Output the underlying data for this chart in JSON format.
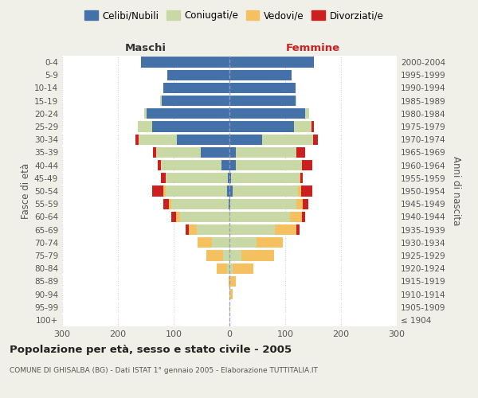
{
  "age_groups": [
    "100+",
    "95-99",
    "90-94",
    "85-89",
    "80-84",
    "75-79",
    "70-74",
    "65-69",
    "60-64",
    "55-59",
    "50-54",
    "45-49",
    "40-44",
    "35-39",
    "30-34",
    "25-29",
    "20-24",
    "15-19",
    "10-14",
    "5-9",
    "0-4"
  ],
  "birth_years": [
    "≤ 1904",
    "1905-1909",
    "1910-1914",
    "1915-1919",
    "1920-1924",
    "1925-1929",
    "1930-1934",
    "1935-1939",
    "1940-1944",
    "1945-1949",
    "1950-1954",
    "1955-1959",
    "1960-1964",
    "1965-1969",
    "1970-1974",
    "1975-1979",
    "1980-1984",
    "1985-1989",
    "1990-1994",
    "1995-1999",
    "2000-2004"
  ],
  "maschi": {
    "celibi": [
      0,
      0,
      0,
      0,
      0,
      0,
      0,
      0,
      0,
      2,
      5,
      3,
      15,
      52,
      95,
      138,
      148,
      122,
      118,
      112,
      158
    ],
    "coniugati": [
      0,
      0,
      0,
      0,
      5,
      12,
      32,
      58,
      88,
      102,
      110,
      112,
      108,
      80,
      68,
      26,
      5,
      2,
      0,
      0,
      0
    ],
    "vedovi": [
      0,
      0,
      0,
      2,
      18,
      30,
      25,
      15,
      8,
      5,
      3,
      0,
      0,
      0,
      0,
      0,
      0,
      0,
      0,
      0,
      0
    ],
    "divorziati": [
      0,
      0,
      0,
      0,
      0,
      0,
      0,
      5,
      8,
      10,
      20,
      8,
      5,
      5,
      5,
      0,
      0,
      0,
      0,
      0,
      0
    ]
  },
  "femmine": {
    "nubili": [
      0,
      0,
      0,
      0,
      0,
      0,
      0,
      0,
      0,
      2,
      5,
      3,
      12,
      12,
      58,
      115,
      135,
      118,
      118,
      112,
      152
    ],
    "coniugate": [
      0,
      0,
      0,
      0,
      5,
      22,
      48,
      82,
      108,
      118,
      118,
      122,
      118,
      108,
      92,
      32,
      8,
      2,
      0,
      0,
      0
    ],
    "vedove": [
      0,
      2,
      5,
      12,
      38,
      58,
      48,
      38,
      22,
      12,
      5,
      2,
      0,
      0,
      0,
      0,
      0,
      0,
      0,
      0,
      0
    ],
    "divorziate": [
      0,
      0,
      0,
      0,
      0,
      0,
      0,
      5,
      5,
      10,
      20,
      5,
      18,
      15,
      8,
      5,
      0,
      0,
      0,
      0,
      0
    ]
  },
  "colors": {
    "celibi": "#4472a8",
    "coniugati": "#c8d9a5",
    "vedovi": "#f5c060",
    "divorziati": "#cc2020"
  },
  "xlim": 300,
  "title": "Popolazione per età, sesso e stato civile - 2005",
  "subtitle": "COMUNE DI GHISALBA (BG) - Dati ISTAT 1° gennaio 2005 - Elaborazione TUTTITALIA.IT",
  "ylabel_left": "Fasce di età",
  "ylabel_right": "Anni di nascita",
  "label_maschi": "Maschi",
  "label_femmine": "Femmine",
  "bg_color": "#f0f0e8",
  "plot_bg": "#ffffff",
  "legend_labels": [
    "Celibi/Nubili",
    "Coniugati/e",
    "Vedovi/e",
    "Divorziati/e"
  ]
}
